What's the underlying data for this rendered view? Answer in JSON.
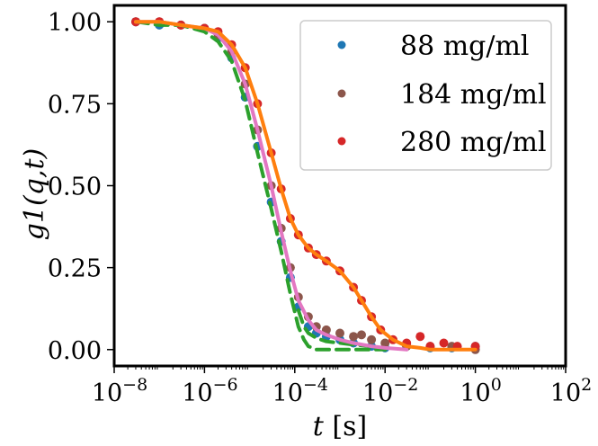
{
  "chart_data": {
    "type": "scatter",
    "xscale": "log",
    "xlim": [
      1e-08,
      100
    ],
    "ylim": [
      -0.05,
      1.05
    ],
    "xlabel": {
      "main": "t",
      "unit": "[s]"
    },
    "ylabel": "g1(q,t)",
    "x_tick_values": [
      1e-08,
      1e-06,
      0.0001,
      0.01,
      1,
      100
    ],
    "x_ticks": [
      {
        "base": "10",
        "exp": "−8"
      },
      {
        "base": "10",
        "exp": "−6"
      },
      {
        "base": "10",
        "exp": "−4"
      },
      {
        "base": "10",
        "exp": "−2"
      },
      {
        "base": "10",
        "exp": "0"
      },
      {
        "base": "10",
        "exp": "2"
      }
    ],
    "y_tick_values": [
      0.0,
      0.25,
      0.5,
      0.75,
      1.0
    ],
    "y_ticks": [
      "0.00",
      "0.25",
      "0.50",
      "0.75",
      "1.00"
    ],
    "legend_position": "top-right",
    "series": [
      {
        "name": "88 mg/ml",
        "color": "#1f77b4",
        "t": [
          3e-08,
          1e-07,
          3e-07,
          1e-06,
          2e-06,
          4e-06,
          8e-06,
          1.5e-05,
          3e-05,
          5e-05,
          8e-05,
          0.00012,
          0.0002,
          0.0003,
          0.0005,
          0.001,
          0.002,
          0.005,
          0.01,
          0.03,
          0.1,
          0.3,
          1.0
        ],
        "g1": [
          1.0,
          0.99,
          0.99,
          0.98,
          0.95,
          0.89,
          0.77,
          0.62,
          0.45,
          0.33,
          0.22,
          0.13,
          0.07,
          0.05,
          0.04,
          0.03,
          0.02,
          0.01,
          0.005,
          0.01,
          0.005,
          0.005,
          0.01
        ]
      },
      {
        "name": "184 mg/ml",
        "color": "#8c564b",
        "t": [
          3e-08,
          1e-07,
          3e-07,
          1e-06,
          2e-06,
          4e-06,
          8e-06,
          1.5e-05,
          3e-05,
          5e-05,
          8e-05,
          0.00012,
          0.0002,
          0.0003,
          0.0005,
          0.001,
          0.002,
          0.003,
          0.005,
          0.01,
          0.03,
          0.1,
          0.3,
          1.0
        ],
        "g1": [
          1.0,
          1.0,
          0.99,
          0.98,
          0.96,
          0.91,
          0.81,
          0.67,
          0.5,
          0.37,
          0.25,
          0.16,
          0.1,
          0.07,
          0.06,
          0.05,
          0.04,
          0.045,
          0.03,
          0.02,
          0.01,
          0.01,
          0.01,
          0.0
        ]
      },
      {
        "name": "280 mg/ml",
        "color": "#d62728",
        "t": [
          3e-08,
          1e-07,
          3e-07,
          1e-06,
          2e-06,
          4e-06,
          8e-06,
          1.5e-05,
          3e-05,
          5e-05,
          8e-05,
          0.00012,
          0.0002,
          0.0003,
          0.0005,
          0.001,
          0.002,
          0.003,
          0.005,
          0.008,
          0.015,
          0.03,
          0.06,
          0.1,
          0.2,
          0.4,
          1.0
        ],
        "g1": [
          1.0,
          1.0,
          0.99,
          0.98,
          0.97,
          0.93,
          0.86,
          0.75,
          0.6,
          0.49,
          0.4,
          0.35,
          0.31,
          0.29,
          0.27,
          0.24,
          0.19,
          0.15,
          0.1,
          0.06,
          0.03,
          0.02,
          0.04,
          0.01,
          0.02,
          0.01,
          0.01
        ]
      }
    ],
    "fits": [
      {
        "style": "dashed",
        "color": "#2ca02c",
        "t": [
          3e-08,
          1e-07,
          3e-07,
          1e-06,
          2e-06,
          4e-06,
          8e-06,
          1.5e-05,
          3e-05,
          5e-05,
          8e-05,
          0.00012,
          0.00016,
          0.0002,
          0.0003,
          0.0005,
          0.001,
          0.003,
          0.01
        ],
        "g1": [
          1.0,
          0.99,
          0.99,
          0.97,
          0.94,
          0.88,
          0.76,
          0.6,
          0.43,
          0.3,
          0.17,
          0.07,
          0.03,
          0.01,
          0.0,
          0.0,
          0.0,
          0.0,
          0.0
        ]
      },
      {
        "style": "dashed",
        "color": "#2ca02c",
        "t": [
          0.00012,
          0.00016,
          0.0002,
          0.0003,
          0.0005,
          0.001,
          0.002,
          0.005,
          0.01
        ],
        "g1": [
          0.12,
          0.07,
          0.05,
          0.035,
          0.025,
          0.02,
          0.015,
          0.01,
          0.0
        ]
      },
      {
        "style": "solid",
        "color": "#e377c2",
        "t": [
          3e-08,
          1e-07,
          3e-07,
          1e-06,
          2e-06,
          4e-06,
          8e-06,
          1.5e-05,
          3e-05,
          5e-05,
          8e-05,
          0.00012,
          0.0002,
          0.0003,
          0.0005,
          0.001,
          0.002,
          0.005,
          0.01,
          0.03
        ],
        "g1": [
          1.0,
          1.0,
          0.99,
          0.98,
          0.96,
          0.91,
          0.81,
          0.67,
          0.5,
          0.36,
          0.24,
          0.15,
          0.09,
          0.06,
          0.045,
          0.03,
          0.02,
          0.01,
          0.005,
          0.0
        ]
      },
      {
        "style": "solid",
        "color": "#ff7f0e",
        "t": [
          3e-08,
          1e-07,
          3e-07,
          1e-06,
          2e-06,
          4e-06,
          8e-06,
          1.5e-05,
          3e-05,
          5e-05,
          8e-05,
          0.00012,
          0.0002,
          0.0003,
          0.0005,
          0.001,
          0.002,
          0.003,
          0.005,
          0.008,
          0.015,
          0.03,
          0.06,
          0.1,
          0.3,
          1.0
        ],
        "g1": [
          1.0,
          1.0,
          0.99,
          0.98,
          0.97,
          0.93,
          0.86,
          0.75,
          0.6,
          0.49,
          0.4,
          0.35,
          0.31,
          0.29,
          0.27,
          0.24,
          0.19,
          0.15,
          0.1,
          0.06,
          0.03,
          0.01,
          0.005,
          0.0,
          0.0,
          0.0
        ]
      }
    ]
  }
}
